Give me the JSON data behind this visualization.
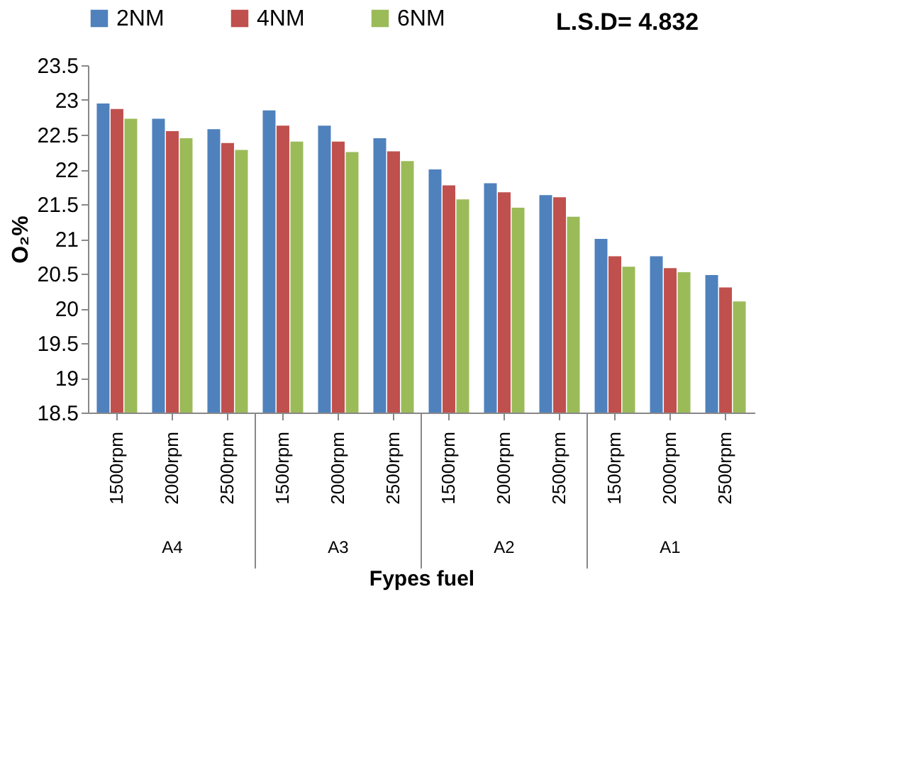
{
  "chart_data": {
    "type": "bar",
    "xlabel": "Fypes fuel",
    "ylabel": "O₂%",
    "categories": [
      "1500rpm",
      "2000rpm",
      "2500rpm",
      "1500rpm",
      "2000rpm",
      "2500rpm",
      "1500rpm",
      "2000rpm",
      "2500rpm",
      "1500rpm",
      "2000rpm",
      "2500rpm"
    ],
    "series": [
      {
        "name": "2NM",
        "color": "#4f81bd",
        "values": [
          22.95,
          22.73,
          22.58,
          22.85,
          22.63,
          22.45,
          22.0,
          21.8,
          21.63,
          21.0,
          20.75,
          20.48
        ]
      },
      {
        "name": "4NM",
        "color": "#c0504d",
        "values": [
          22.87,
          22.55,
          22.38,
          22.63,
          22.4,
          22.26,
          21.77,
          21.67,
          21.6,
          20.75,
          20.58,
          20.3
        ]
      },
      {
        "name": "6NM",
        "color": "#9bbb59",
        "values": [
          22.73,
          22.45,
          22.28,
          22.4,
          22.25,
          22.12,
          21.57,
          21.45,
          21.32,
          20.6,
          20.52,
          20.1
        ]
      }
    ],
    "ylim": [
      18.5,
      23.5
    ],
    "yticks": [
      18.5,
      19,
      19.5,
      20,
      20.5,
      21,
      21.5,
      22,
      22.5,
      23,
      23.5
    ],
    "annotations": [
      "L.S.D= 4.832",
      "A4",
      "A3",
      "A2",
      "A1"
    ],
    "legend": "top",
    "grid": false
  }
}
